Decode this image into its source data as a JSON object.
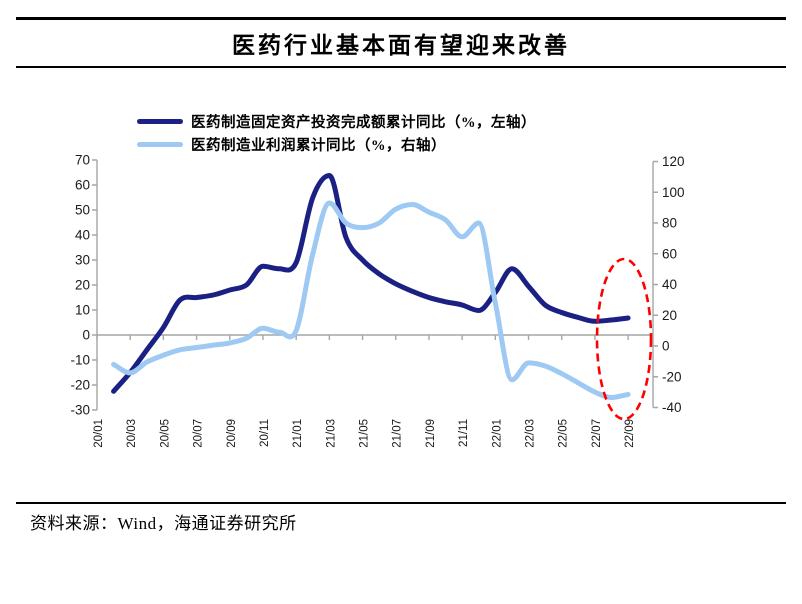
{
  "header": {
    "title": "医药行业基本面有望迎来改善"
  },
  "chart_data": {
    "type": "line",
    "x": [
      "20/01",
      "20/02",
      "20/03",
      "20/04",
      "20/05",
      "20/06",
      "20/07",
      "20/08",
      "20/09",
      "20/10",
      "20/11",
      "20/12",
      "21/01",
      "21/02",
      "21/03",
      "21/04",
      "21/05",
      "21/06",
      "21/07",
      "21/08",
      "21/09",
      "21/10",
      "21/11",
      "21/12",
      "22/01",
      "22/02",
      "22/03",
      "22/04",
      "22/05",
      "22/06",
      "22/07",
      "22/08",
      "22/09"
    ],
    "x_tick_labels": [
      "20/01",
      "20/03",
      "20/05",
      "20/07",
      "20/09",
      "20/11",
      "21/01",
      "21/03",
      "21/05",
      "21/07",
      "21/09",
      "21/11",
      "22/01",
      "22/03",
      "22/05",
      "22/07",
      "22/09"
    ],
    "series": [
      {
        "name": "医药制造固定资产投资完成额累计同比（%，左轴）",
        "axis": "left",
        "color": "#1b2184",
        "values": [
          null,
          -22.5,
          -15,
          -6,
          3,
          14,
          15,
          16,
          18,
          20,
          27.5,
          26.5,
          29,
          55,
          63.8,
          39,
          30,
          24.5,
          20.5,
          17.5,
          15,
          13.3,
          12,
          9.8,
          17,
          26.5,
          19.5,
          12,
          9,
          7,
          5.5,
          6,
          6.8
        ]
      },
      {
        "name": "医药制造业利润累计同比（%，右轴）",
        "axis": "right",
        "color": "#9ec9f2",
        "values": [
          null,
          -12,
          -17.5,
          -10.5,
          -6,
          -2.5,
          -1,
          0.5,
          2,
          5,
          11.5,
          9,
          10,
          60,
          93,
          80,
          77,
          80,
          89,
          92,
          87,
          82,
          71,
          80,
          28,
          -22,
          -11,
          -13,
          -18,
          -24,
          -30,
          -33.5,
          -31.5
        ]
      }
    ],
    "left_axis": {
      "min": -30,
      "max": 70,
      "step": 10,
      "tick_labels": [
        "70",
        "60",
        "50",
        "40",
        "30",
        "20",
        "10",
        "0",
        "-10",
        "-20",
        "-30"
      ]
    },
    "right_axis": {
      "min": -40,
      "max": 120,
      "step": 20,
      "tick_labels": [
        "120",
        "100",
        "80",
        "60",
        "40",
        "20",
        "0",
        "-20",
        "-40"
      ]
    },
    "annotation": {
      "shape": "dashed_ellipse",
      "color": "#ff0000",
      "highlights": "latest months of both series"
    },
    "axis_color": "#a6a6a6",
    "grid": false,
    "legend_position": "top"
  },
  "source": {
    "label": "资料来源：Wind，海通证券研究所"
  }
}
